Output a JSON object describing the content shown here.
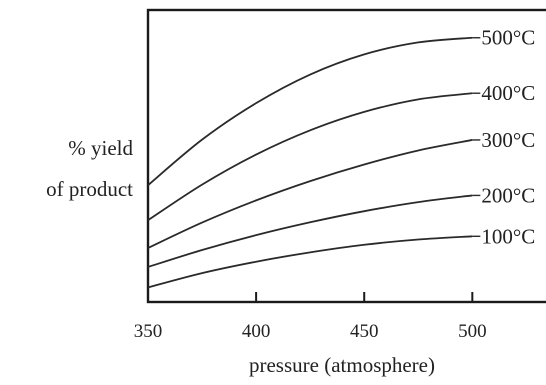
{
  "chart_data": {
    "type": "line",
    "title": "",
    "xlabel": "pressure (atmosphere)",
    "ylabel_lines": [
      "% yield",
      "of product"
    ],
    "xlim": [
      350,
      535
    ],
    "ylim": [
      0,
      100
    ],
    "xticks": [
      350,
      400,
      450,
      500
    ],
    "xtick_labels": [
      "350",
      "400",
      "450",
      "500"
    ],
    "y_ticks_shown": false,
    "grid": false,
    "legend": "labels at right end of each curve",
    "x": [
      350,
      375,
      400,
      425,
      450,
      475,
      500
    ],
    "series": [
      {
        "name": "500°C",
        "values": [
          40,
          55.6,
          68.1,
          77.9,
          84.8,
          88.9,
          90.5
        ]
      },
      {
        "name": "400°C",
        "values": [
          28,
          40.2,
          50.5,
          58.8,
          65.1,
          69.4,
          71.5
        ]
      },
      {
        "name": "300°C",
        "values": [
          18.5,
          27.2,
          34.8,
          41.4,
          47.1,
          51.9,
          55.5
        ]
      },
      {
        "name": "200°C",
        "values": [
          12,
          17.8,
          22.9,
          27.3,
          31.1,
          34.2,
          36.5
        ]
      },
      {
        "name": "100°C",
        "values": [
          5,
          9.9,
          13.8,
          17,
          19.6,
          21.4,
          22.5
        ]
      }
    ]
  }
}
